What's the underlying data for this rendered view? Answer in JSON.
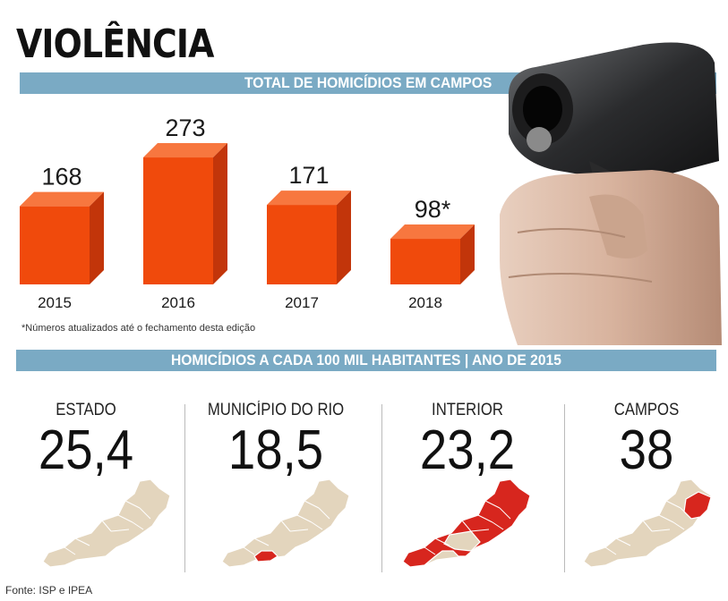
{
  "header": {
    "title": "VIOLÊNCIA"
  },
  "bands": {
    "total": "TOTAL DE HOMICÍDIOS EM CAMPOS",
    "rate": "HOMICÍDIOS A CADA 100 MIL HABITANTES | ANO DE 2015"
  },
  "chart_data": {
    "type": "bar",
    "title": "TOTAL DE HOMICÍDIOS EM CAMPOS",
    "categories": [
      "2015",
      "2016",
      "2017",
      "2018"
    ],
    "values": [
      168,
      273,
      171,
      98
    ],
    "labels": [
      "168",
      "273",
      "171",
      "98*"
    ],
    "bar_color": "#f04a0c",
    "bar_side_color": "#c2350a",
    "bar_top_color": "#f7773f"
  },
  "note": "*Números atualizados até o fechamento desta edição",
  "stats": [
    {
      "label": "ESTADO",
      "value": "25,4",
      "highlight": "none"
    },
    {
      "label": "MUNICÍPIO DO RIO",
      "value": "18,5",
      "highlight": "rio"
    },
    {
      "label": "INTERIOR",
      "value": "23,2",
      "highlight": "interior"
    },
    {
      "label": "CAMPOS",
      "value": "38",
      "highlight": "campos"
    }
  ],
  "map_colors": {
    "base": "#e3d5bd",
    "highlight": "#d7261e",
    "border": "#ffffff"
  },
  "source": "Fonte: ISP e IPEA"
}
